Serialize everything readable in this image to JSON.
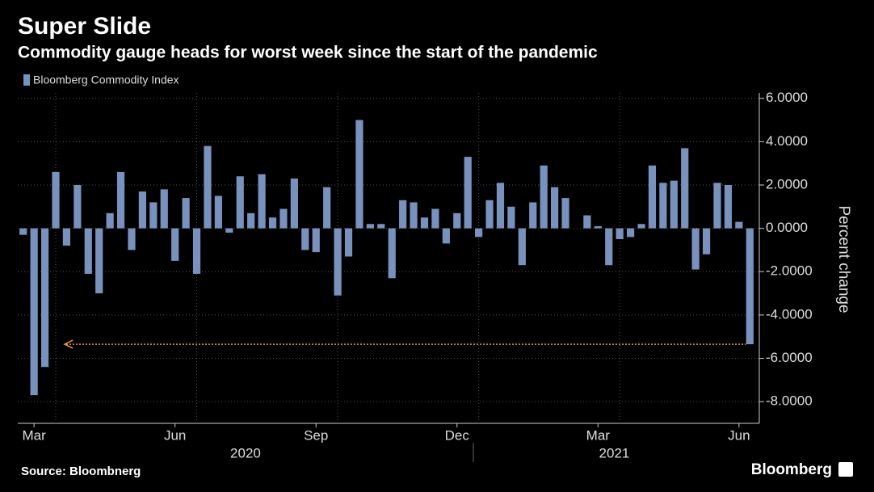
{
  "chart_data": {
    "type": "bar",
    "title": "Super Slide",
    "subtitle": "Commodity gauge heads for worst week since the start of the pandemic",
    "y_label": "Percent change",
    "source": "Source: Bloombnerg",
    "brand": "Bloomberg",
    "x_groups": [
      "2020",
      "2021"
    ],
    "categories": [
      null,
      "Mar",
      null,
      null,
      null,
      null,
      null,
      null,
      null,
      null,
      null,
      null,
      null,
      null,
      "Jun",
      null,
      null,
      null,
      null,
      null,
      null,
      null,
      null,
      null,
      null,
      null,
      null,
      "Sep",
      null,
      null,
      null,
      null,
      null,
      null,
      null,
      null,
      null,
      null,
      null,
      null,
      "Dec",
      null,
      null,
      null,
      null,
      null,
      null,
      null,
      null,
      null,
      null,
      null,
      null,
      "Mar",
      null,
      null,
      null,
      null,
      null,
      null,
      null,
      null,
      null,
      null,
      null,
      null,
      "Jun",
      null
    ],
    "series": [
      {
        "name": "Bloomberg Commodity Index",
        "color": "#7891bd",
        "values": [
          -0.3,
          -7.7,
          -6.4,
          2.6,
          -0.8,
          2.0,
          -2.1,
          -3.0,
          0.7,
          2.6,
          -1.0,
          1.7,
          1.2,
          1.8,
          -1.5,
          1.4,
          -2.1,
          3.8,
          1.5,
          -0.2,
          2.4,
          0.7,
          2.5,
          0.5,
          0.9,
          2.3,
          -1.0,
          -1.1,
          1.9,
          -3.1,
          -1.3,
          5.0,
          0.2,
          0.2,
          -2.3,
          1.3,
          1.2,
          0.5,
          0.9,
          -0.7,
          0.7,
          3.3,
          -0.4,
          1.3,
          2.1,
          1.0,
          -1.7,
          1.2,
          2.9,
          1.9,
          1.4,
          0.0,
          0.6,
          0.1,
          -1.7,
          -0.5,
          -0.4,
          0.2,
          2.9,
          2.1,
          2.2,
          3.7,
          -1.9,
          -1.2,
          2.1,
          2.0,
          0.3,
          -5.35
        ]
      }
    ],
    "ylim": [
      -9,
      6.25
    ],
    "yticks": [
      {
        "value": 6,
        "label": "6.0000"
      },
      {
        "value": 4,
        "label": "4.0000"
      },
      {
        "value": 2,
        "label": "2.0000"
      },
      {
        "value": 0,
        "label": "0.0000"
      },
      {
        "value": -2,
        "label": "-2.0000"
      },
      {
        "value": -4,
        "label": "-4.0000"
      },
      {
        "value": -6,
        "label": "-6.0000"
      },
      {
        "value": -8,
        "label": "-8.0000"
      }
    ],
    "grid": true,
    "annotation_color": "#e8923a"
  }
}
